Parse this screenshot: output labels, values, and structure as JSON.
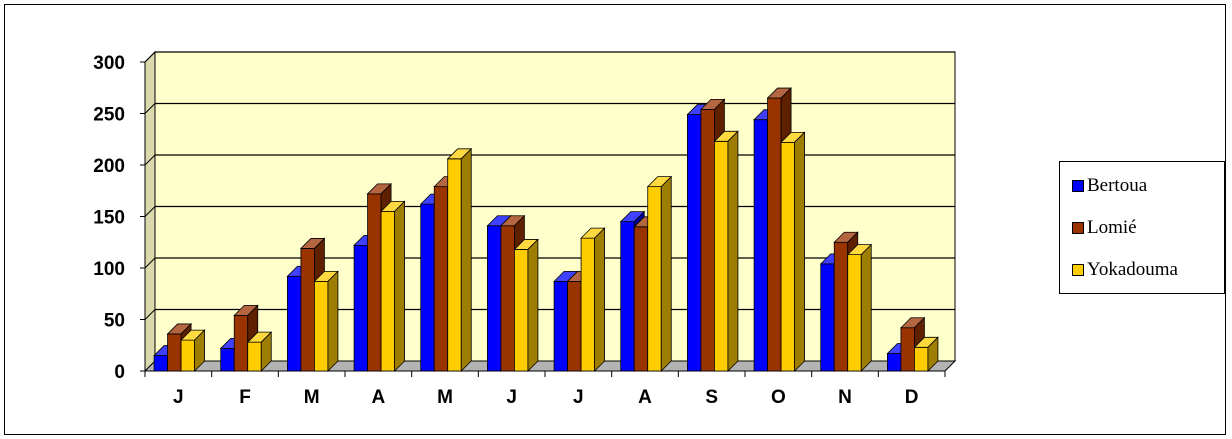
{
  "chart_data": {
    "type": "bar",
    "categories": [
      "J",
      "F",
      "M",
      "A",
      "M",
      "J",
      "J",
      "A",
      "S",
      "O",
      "N",
      "D"
    ],
    "series": [
      {
        "name": "Bertoua",
        "color": "#0000ff",
        "values": [
          15,
          22,
          92,
          122,
          162,
          141,
          87,
          145,
          249,
          244,
          104,
          17
        ]
      },
      {
        "name": "Lomié",
        "color": "#993300",
        "values": [
          36,
          54,
          119,
          172,
          179,
          141,
          87,
          140,
          254,
          265,
          125,
          42
        ]
      },
      {
        "name": "Yokadouma",
        "color": "#ffcc00",
        "values": [
          30,
          28,
          87,
          155,
          206,
          118,
          129,
          179,
          223,
          222,
          113,
          23
        ]
      }
    ],
    "ylim": [
      0,
      300
    ],
    "yticks": [
      0,
      50,
      100,
      150,
      200,
      250,
      300
    ],
    "ytick_labels": [
      "0",
      "50",
      "100",
      "150",
      "200",
      "250",
      "300"
    ],
    "grid": true,
    "legend_position": "right",
    "style": "3d-clustered-column",
    "wall_color": "#ffffcc",
    "floor_color": "#b3b3b3",
    "title": "",
    "xlabel": "",
    "ylabel": ""
  }
}
